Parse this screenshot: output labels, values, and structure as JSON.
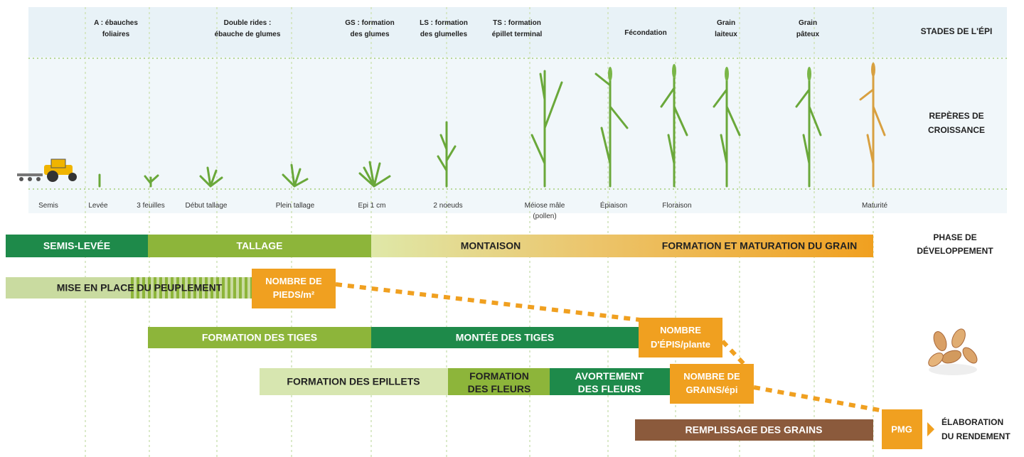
{
  "rows": {
    "stades": [
      "STADES DE L'ÉPI"
    ],
    "reperes": [
      "REPÈRES DE",
      "CROISSANCE"
    ],
    "phase": [
      "PHASE DE",
      "DÉVELOPPEMENT"
    ],
    "rendement": [
      "ÉLABORATION",
      "DU RENDEMENT"
    ]
  },
  "stades": [
    [
      "A :  ébauches",
      "foliaires"
    ],
    [
      "Double rides :",
      "ébauche de glumes"
    ],
    [
      "GS : formation",
      "des glumes"
    ],
    [
      "LS : formation",
      "des glumelles"
    ],
    [
      "TS : formation",
      "épillet terminal"
    ],
    [
      "Fécondation"
    ],
    [
      "Grain",
      "laiteux"
    ],
    [
      "Grain",
      "pâteux"
    ]
  ],
  "reperes": [
    [
      "Semis"
    ],
    [
      "Levée"
    ],
    [
      "3 feuilles"
    ],
    [
      "Début tallage"
    ],
    [
      "Plein tallage"
    ],
    [
      "Epi 1 cm"
    ],
    [
      "2 noeuds"
    ],
    [
      "Méiose mâle",
      "(pollen)"
    ],
    [
      "Épiaison"
    ],
    [
      "Floraison"
    ],
    [
      "Maturité"
    ]
  ],
  "phases": [
    "SEMIS-LEVÉE",
    "TALLAGE",
    "MONTAISON",
    "FORMATION ET MATURATION DU GRAIN"
  ],
  "rendement": {
    "peuplement": "MISE EN PLACE DU PEUPLEMENT",
    "pieds": [
      "NOMBRE DE",
      "PIEDS/m²"
    ],
    "tiges": "FORMATION DES TIGES",
    "montee": "MONTÉE DES TIGES",
    "epis": [
      "NOMBRE",
      "D'ÉPIS/plante"
    ],
    "epillets": "FORMATION DES EPILLETS",
    "fleurs": [
      "FORMATION",
      "DES FLEURS"
    ],
    "avortement": [
      "AVORTEMENT",
      "DES FLEURS"
    ],
    "grains": [
      "NOMBRE DE",
      "GRAINS/épi"
    ],
    "remplissage": "REMPLISSAGE DES GRAINS",
    "pmg": "PMG"
  }
}
